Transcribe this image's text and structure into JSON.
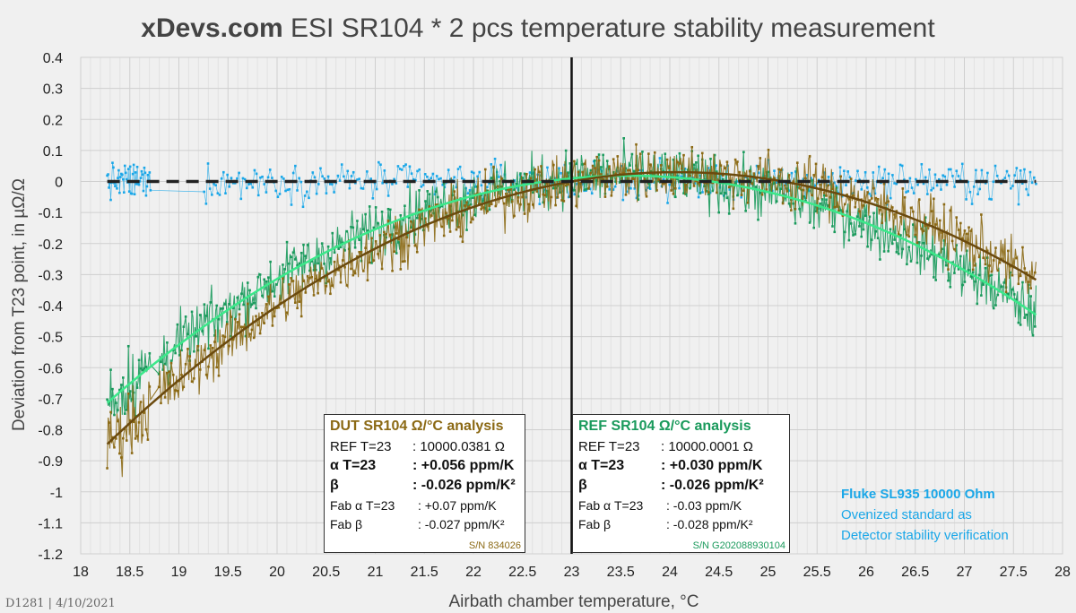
{
  "title": {
    "brand": "xDevs.com",
    "rest": " ESI SR104 * 2 pcs temperature stability measurement"
  },
  "footer": "D1281 | 4/10/2021",
  "colors": {
    "dut": "#8B6914",
    "dut_fit": "#6b4a0e",
    "ref": "#1a9a5c",
    "ref_fit": "#3be88a",
    "fluke": "#1aa7e8",
    "zero": "#222222"
  },
  "dut_box": {
    "header": "DUT SR104 Ω/°C analysis",
    "ref_key": "REF T=23",
    "ref_val": ": 10000.0381 Ω",
    "alpha_key": "α T=23",
    "alpha_val": ": +0.056 ppm/K",
    "beta_key": "β",
    "beta_val": ": -0.026 ppm/K²",
    "fab_alpha_key": "Fab α T=23",
    "fab_alpha_val": ": +0.07 ppm/K",
    "fab_beta_key": "Fab β",
    "fab_beta_val": ": -0.027 ppm/K²",
    "sn": "S/N 834026"
  },
  "ref_box": {
    "header": "REF SR104 Ω/°C analysis",
    "ref_key": "REF T=23",
    "ref_val": ": 10000.0001 Ω",
    "alpha_key": "α T=23",
    "alpha_val": ": +0.030 ppm/K",
    "beta_key": "β",
    "beta_val": ": -0.026 ppm/K²",
    "fab_alpha_key": "Fab α T=23",
    "fab_alpha_val": ": -0.03 ppm/K",
    "fab_beta_key": "Fab β",
    "fab_beta_val": ": -0.028 ppm/K²",
    "sn": "S/N G202088930104"
  },
  "fluke_box": {
    "line1": "Fluke SL935 10000 Ohm",
    "line2": "Ovenized standard as",
    "line3": "Detector stability verification"
  },
  "chart_data": {
    "type": "line",
    "title": "xDevs.com ESI SR104 * 2 pcs temperature stability measurement",
    "xlabel": "Airbath chamber temperature, °C",
    "ylabel": "Deviation from T23 point, in µΩ/Ω",
    "xlim": [
      18,
      28
    ],
    "ylim": [
      -1.2,
      0.4
    ],
    "x_ticks": [
      "18",
      "18.5",
      "19",
      "19.5",
      "20",
      "20.5",
      "21",
      "21.5",
      "22",
      "22.5",
      "23",
      "23.5",
      "24",
      "24.5",
      "25",
      "25.5",
      "26",
      "26.5",
      "27",
      "27.5",
      "28"
    ],
    "y_ticks": [
      "0.4",
      "0.3",
      "0.2",
      "0.1",
      "0",
      "-0.1",
      "-0.2",
      "-0.3",
      "-0.4",
      "-0.5",
      "-0.6",
      "-0.7",
      "-0.8",
      "-0.9",
      "-1",
      "-1.1",
      "-1.2"
    ],
    "grid": true,
    "vertical_marker_x": 23,
    "x_range_data": [
      18.27,
      27.73
    ],
    "series": [
      {
        "key": "fluke",
        "noise": 0.055,
        "fit_a": 0.0,
        "fit_b": 0.0,
        "fit_c": 0.0
      },
      {
        "key": "ref",
        "noise": 0.085,
        "fit_a": 0.03,
        "fit_b": -0.026,
        "fit_c": 0.01
      },
      {
        "key": "dut",
        "noise": 0.085,
        "fit_a": 0.056,
        "fit_b": -0.026,
        "fit_c": 0.0
      }
    ],
    "fits": [
      {
        "key": "ref_fit",
        "alpha": 0.03,
        "beta": -0.026,
        "offset": 0.01
      },
      {
        "key": "dut_fit",
        "alpha": 0.056,
        "beta": -0.026,
        "offset": 0.0
      },
      {
        "key": "zero",
        "alpha": 0.0,
        "beta": 0.0,
        "offset": 0.0,
        "dashed": true
      }
    ]
  }
}
